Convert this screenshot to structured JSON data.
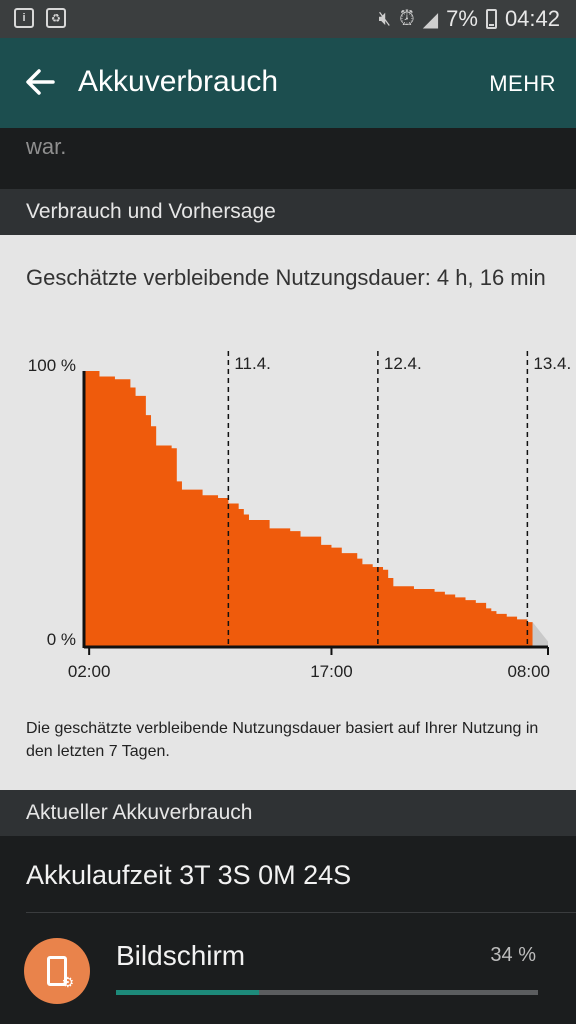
{
  "status": {
    "battery": "7%",
    "time": "04:42",
    "icons": [
      "info-icon",
      "recycle-icon",
      "mute-icon",
      "alarm-icon",
      "signal-icon",
      "battery-icon"
    ]
  },
  "appbar": {
    "title": "Akkuverbrauch",
    "more": "MEHR"
  },
  "prev_text": "war.",
  "sections": {
    "usage_forecast": "Verbrauch und Vorhersage",
    "current_usage": "Aktueller Akkuverbrauch"
  },
  "estimate": "Geschätzte verbleibende Nutzungsdauer: 4 h, 16 min",
  "footnote": "Die geschätzte verbleibende Nutzungsdauer basiert auf Ihrer Nutzung in den letzten 7 Tagen.",
  "chart_data": {
    "type": "area",
    "color": "#ef5b0c",
    "y_labels": [
      "100 %",
      "0 %"
    ],
    "ylim": [
      0,
      100
    ],
    "x_tick_labels": [
      "02:00",
      "17:00",
      "08:00"
    ],
    "day_markers": [
      "11.4.",
      "12.4.",
      "13.4."
    ],
    "x": [
      0,
      3,
      6,
      9,
      10,
      12,
      13,
      14,
      17,
      18,
      19,
      23,
      26,
      28,
      30,
      31,
      32,
      36,
      40,
      42,
      46,
      48,
      50,
      53,
      54,
      56,
      58,
      59,
      60,
      64,
      68,
      70,
      72,
      74,
      76,
      78,
      79,
      80,
      82,
      83,
      84,
      85,
      86,
      87
    ],
    "values": [
      100,
      98,
      97,
      94,
      91,
      84,
      80,
      73,
      72,
      60,
      57,
      55,
      54,
      52,
      50,
      48,
      46,
      43,
      42,
      40,
      37,
      36,
      34,
      32,
      30,
      29,
      28,
      25,
      22,
      21,
      20,
      19,
      18,
      17,
      16,
      14,
      13,
      12,
      11,
      11,
      10,
      10,
      9,
      9
    ],
    "projection_x": [
      87,
      90
    ],
    "projection_values": [
      9,
      2
    ]
  },
  "uptime": "Akkulaufzeit 3T 3S 0M 24S",
  "usage_item": {
    "label": "Bildschirm",
    "percent": "34 %",
    "fraction": 0.34
  }
}
